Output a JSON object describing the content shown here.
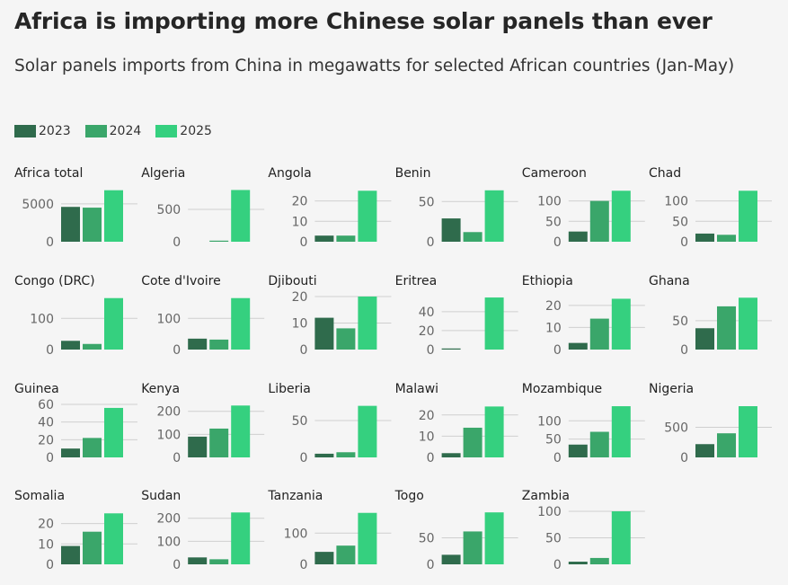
{
  "title": "Africa is importing more Chinese solar panels than ever",
  "subtitle": "Solar panels imports from China in megawatts for selected African countries (Jan-May)",
  "legend": [
    {
      "label": "2023",
      "color": "#2f6b4c"
    },
    {
      "label": "2024",
      "color": "#3aa66a"
    },
    {
      "label": "2025",
      "color": "#35d07f"
    }
  ],
  "chart_data": {
    "type": "bar",
    "categories": [
      "2023",
      "2024",
      "2025"
    ],
    "colors": [
      "#2f6b4c",
      "#3aa66a",
      "#35d07f"
    ],
    "panels": [
      {
        "name": "Africa total",
        "values": [
          4600,
          4500,
          6800
        ],
        "ymax": 7000,
        "ticks": [
          0,
          5000
        ]
      },
      {
        "name": "Algeria",
        "values": [
          0,
          5,
          800
        ],
        "ymax": 820,
        "ticks": [
          0,
          500
        ]
      },
      {
        "name": "Angola",
        "values": [
          3,
          3,
          25
        ],
        "ymax": 26,
        "ticks": [
          0,
          10,
          20
        ]
      },
      {
        "name": "Benin",
        "values": [
          29,
          12,
          64
        ],
        "ymax": 66,
        "ticks": [
          0,
          50
        ]
      },
      {
        "name": "Cameroon",
        "values": [
          25,
          100,
          125
        ],
        "ymax": 130,
        "ticks": [
          0,
          50,
          100
        ]
      },
      {
        "name": "Chad",
        "values": [
          20,
          17,
          125
        ],
        "ymax": 130,
        "ticks": [
          0,
          50,
          100
        ]
      },
      {
        "name": "Congo (DRC)",
        "values": [
          28,
          18,
          165
        ],
        "ymax": 170,
        "ticks": [
          0,
          100
        ]
      },
      {
        "name": "Cote d'Ivoire",
        "values": [
          35,
          32,
          165
        ],
        "ymax": 170,
        "ticks": [
          0,
          100
        ]
      },
      {
        "name": "Djibouti",
        "values": [
          12,
          8,
          20
        ],
        "ymax": 20,
        "ticks": [
          0,
          10,
          20
        ]
      },
      {
        "name": "Eritrea",
        "values": [
          1,
          0,
          55
        ],
        "ymax": 56,
        "ticks": [
          0,
          20,
          40
        ]
      },
      {
        "name": "Ethiopia",
        "values": [
          3,
          14,
          23
        ],
        "ymax": 24,
        "ticks": [
          0,
          10,
          20
        ]
      },
      {
        "name": "Ghana",
        "values": [
          37,
          75,
          90
        ],
        "ymax": 92,
        "ticks": [
          0,
          50
        ]
      },
      {
        "name": "Guinea",
        "values": [
          10,
          22,
          56
        ],
        "ymax": 60,
        "ticks": [
          0,
          20,
          40,
          60
        ]
      },
      {
        "name": "Kenya",
        "values": [
          90,
          125,
          225
        ],
        "ymax": 230,
        "ticks": [
          0,
          100,
          200
        ]
      },
      {
        "name": "Liberia",
        "values": [
          5,
          7,
          70
        ],
        "ymax": 72,
        "ticks": [
          0,
          50
        ]
      },
      {
        "name": "Malawi",
        "values": [
          2,
          14,
          24
        ],
        "ymax": 25,
        "ticks": [
          0,
          10,
          20
        ]
      },
      {
        "name": "Mozambique",
        "values": [
          35,
          70,
          140
        ],
        "ymax": 145,
        "ticks": [
          0,
          50,
          100
        ]
      },
      {
        "name": "Nigeria",
        "values": [
          220,
          400,
          850
        ],
        "ymax": 880,
        "ticks": [
          0,
          500
        ]
      },
      {
        "name": "Somalia",
        "values": [
          9,
          16,
          25
        ],
        "ymax": 26,
        "ticks": [
          0,
          10,
          20
        ]
      },
      {
        "name": "Sudan",
        "values": [
          30,
          22,
          225
        ],
        "ymax": 230,
        "ticks": [
          0,
          100,
          200
        ]
      },
      {
        "name": "Tanzania",
        "values": [
          40,
          60,
          165
        ],
        "ymax": 170,
        "ticks": [
          0,
          100
        ]
      },
      {
        "name": "Togo",
        "values": [
          18,
          62,
          98
        ],
        "ymax": 100,
        "ticks": [
          0,
          50
        ]
      },
      {
        "name": "Zambia",
        "values": [
          5,
          12,
          100
        ],
        "ymax": 100,
        "ticks": [
          0,
          50,
          100
        ]
      }
    ]
  }
}
